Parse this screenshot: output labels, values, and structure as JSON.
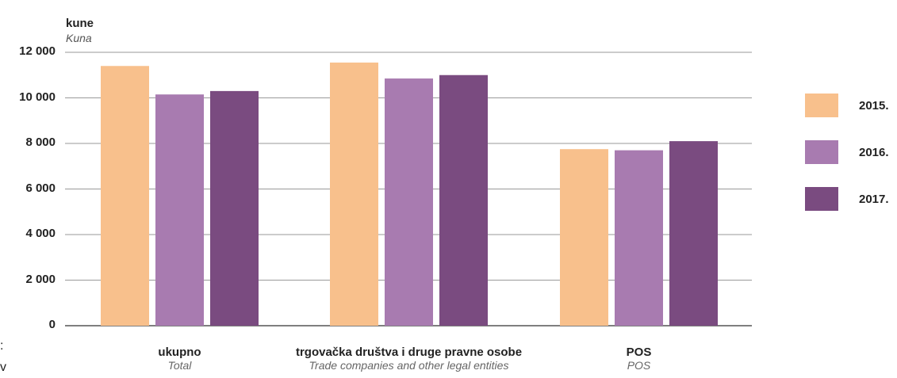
{
  "chart_data": {
    "type": "bar",
    "unit_label": "kune",
    "unit_label_en": "Kuna",
    "categories": [
      {
        "label": "ukupno",
        "label_en": "Total"
      },
      {
        "label": "trgovačka društva i druge pravne osobe",
        "label_en": "Trade companies and other legal entities"
      },
      {
        "label": "POS",
        "label_en": "POS"
      }
    ],
    "series": [
      {
        "name": "2015.",
        "color": "#f8c08c",
        "values": [
          11400,
          11550,
          7750
        ]
      },
      {
        "name": "2016.",
        "color": "#a87bb0",
        "values": [
          10150,
          10850,
          7700
        ]
      },
      {
        "name": "2017.",
        "color": "#7a4b80",
        "values": [
          10300,
          11000,
          8100
        ]
      }
    ],
    "ylim": [
      0,
      12000
    ],
    "yticks": [
      "0",
      "2 000",
      "4 000",
      "6 000",
      "8 000",
      "10 000",
      "12 000"
    ],
    "ytick_values": [
      0,
      2000,
      4000,
      6000,
      8000,
      10000,
      12000
    ],
    "grid": true,
    "legend_position": "right"
  },
  "edge_fragments": [
    ":",
    "v"
  ]
}
